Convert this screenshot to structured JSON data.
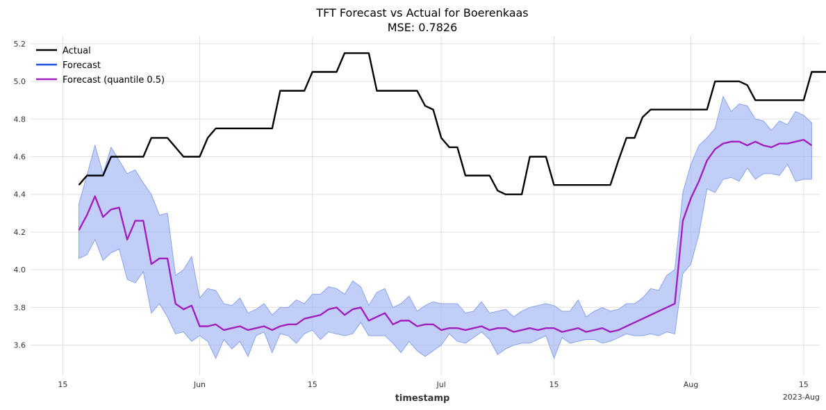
{
  "chart_data": {
    "type": "line",
    "title": "TFT Forecast vs Actual for Boerenkaas",
    "subtitle": "MSE: 0.7826",
    "xlabel": "timestamp",
    "ylabel": "",
    "x_start": "2023-05-17",
    "x_range": [
      "2023-05-11",
      "2023-08-17"
    ],
    "ylim": [
      3.44,
      5.24
    ],
    "y_ticks": [
      3.6,
      3.8,
      4.0,
      4.2,
      4.4,
      4.6,
      4.8,
      5.0,
      5.2
    ],
    "y_tick_labels": [
      "3.6",
      "3.8",
      "4.0",
      "4.2",
      "4.4",
      "4.6",
      "4.8",
      "5.0",
      "5.2"
    ],
    "x_ticks": [
      {
        "date": "2023-05-15",
        "label": "15"
      },
      {
        "date": "2023-06-01",
        "label": "Jun"
      },
      {
        "date": "2023-06-15",
        "label": "15"
      },
      {
        "date": "2023-07-01",
        "label": "Jul"
      },
      {
        "date": "2023-07-15",
        "label": "15"
      },
      {
        "date": "2023-08-01",
        "label": "Aug"
      },
      {
        "date": "2023-08-15",
        "label": "15"
      }
    ],
    "x_corner_label": "2023-Aug",
    "grid": true,
    "legend_position": "top-left",
    "series": [
      {
        "name": "Actual",
        "color": "#000000",
        "values": [
          4.45,
          4.5,
          4.5,
          4.5,
          4.6,
          4.6,
          4.6,
          4.6,
          4.6,
          4.7,
          4.7,
          4.7,
          4.65,
          4.6,
          4.6,
          4.6,
          4.7,
          4.75,
          4.75,
          4.75,
          4.75,
          4.75,
          4.75,
          4.75,
          4.75,
          4.95,
          4.95,
          4.95,
          4.95,
          5.05,
          5.05,
          5.05,
          5.05,
          5.15,
          5.15,
          5.15,
          5.15,
          4.95,
          4.95,
          4.95,
          4.95,
          4.95,
          4.95,
          4.87,
          4.85,
          4.7,
          4.65,
          4.65,
          4.5,
          4.5,
          4.5,
          4.5,
          4.42,
          4.4,
          4.4,
          4.4,
          4.6,
          4.6,
          4.6,
          4.45,
          4.45,
          4.45,
          4.45,
          4.45,
          4.45,
          4.45,
          4.45,
          4.58,
          4.7,
          4.7,
          4.81,
          4.85,
          4.85,
          4.85,
          4.85,
          4.85,
          4.85,
          4.85,
          4.85,
          5.0,
          5.0,
          5.0,
          5.0,
          4.98,
          4.9,
          4.9,
          4.9,
          4.9,
          4.9,
          4.9,
          4.9,
          5.05,
          5.05,
          5.05,
          5.05
        ]
      },
      {
        "name": "Forecast",
        "color": "#1f4fdf",
        "values": []
      },
      {
        "name": "Forecast (quantile 0.5)",
        "color": "#a21fbf",
        "values": [
          4.21,
          4.29,
          4.39,
          4.28,
          4.32,
          4.33,
          4.16,
          4.26,
          4.26,
          4.03,
          4.06,
          4.06,
          3.82,
          3.79,
          3.81,
          3.7,
          3.7,
          3.71,
          3.68,
          3.69,
          3.7,
          3.68,
          3.69,
          3.7,
          3.68,
          3.7,
          3.71,
          3.71,
          3.74,
          3.75,
          3.76,
          3.79,
          3.8,
          3.76,
          3.79,
          3.8,
          3.73,
          3.75,
          3.77,
          3.71,
          3.73,
          3.73,
          3.7,
          3.71,
          3.71,
          3.68,
          3.69,
          3.69,
          3.68,
          3.69,
          3.7,
          3.68,
          3.69,
          3.69,
          3.67,
          3.68,
          3.69,
          3.68,
          3.69,
          3.69,
          3.67,
          3.68,
          3.69,
          3.67,
          3.68,
          3.69,
          3.67,
          3.68,
          3.7,
          3.72,
          3.74,
          3.76,
          3.78,
          3.8,
          3.82,
          4.26,
          4.38,
          4.47,
          4.58,
          4.64,
          4.67,
          4.68,
          4.68,
          4.66,
          4.68,
          4.66,
          4.65,
          4.67,
          4.67,
          4.68,
          4.69,
          4.66
        ]
      }
    ],
    "band": {
      "color": "#a0b4f5",
      "edge_color": "#8aa2ee",
      "upper": [
        4.35,
        4.5,
        4.66,
        4.51,
        4.65,
        4.58,
        4.51,
        4.53,
        4.46,
        4.4,
        4.29,
        4.3,
        3.97,
        4.0,
        4.07,
        3.85,
        3.9,
        3.89,
        3.82,
        3.81,
        3.85,
        3.77,
        3.79,
        3.82,
        3.76,
        3.8,
        3.8,
        3.84,
        3.82,
        3.87,
        3.87,
        3.91,
        3.9,
        3.87,
        3.94,
        3.91,
        3.81,
        3.88,
        3.9,
        3.8,
        3.82,
        3.86,
        3.78,
        3.81,
        3.83,
        3.82,
        3.82,
        3.82,
        3.77,
        3.78,
        3.83,
        3.77,
        3.78,
        3.79,
        3.75,
        3.78,
        3.8,
        3.81,
        3.82,
        3.81,
        3.78,
        3.78,
        3.84,
        3.75,
        3.78,
        3.8,
        3.78,
        3.79,
        3.82,
        3.82,
        3.85,
        3.9,
        3.89,
        3.97,
        4.0,
        4.41,
        4.56,
        4.66,
        4.7,
        4.75,
        4.92,
        4.84,
        4.88,
        4.87,
        4.8,
        4.79,
        4.74,
        4.79,
        4.77,
        4.84,
        4.82,
        4.78
      ],
      "lower": [
        4.06,
        4.08,
        4.16,
        4.05,
        4.09,
        4.11,
        3.95,
        3.93,
        3.99,
        3.77,
        3.82,
        3.75,
        3.66,
        3.67,
        3.62,
        3.65,
        3.62,
        3.53,
        3.63,
        3.58,
        3.62,
        3.54,
        3.65,
        3.67,
        3.56,
        3.66,
        3.65,
        3.61,
        3.66,
        3.68,
        3.63,
        3.67,
        3.66,
        3.65,
        3.66,
        3.72,
        3.65,
        3.65,
        3.65,
        3.61,
        3.56,
        3.62,
        3.57,
        3.54,
        3.57,
        3.6,
        3.66,
        3.62,
        3.61,
        3.64,
        3.67,
        3.63,
        3.55,
        3.58,
        3.6,
        3.61,
        3.61,
        3.63,
        3.65,
        3.53,
        3.64,
        3.61,
        3.62,
        3.63,
        3.63,
        3.61,
        3.62,
        3.64,
        3.66,
        3.65,
        3.65,
        3.66,
        3.65,
        3.67,
        3.66,
        3.98,
        4.03,
        4.19,
        4.43,
        4.41,
        4.48,
        4.49,
        4.47,
        4.54,
        4.48,
        4.51,
        4.51,
        4.5,
        4.56,
        4.47,
        4.48,
        4.48
      ]
    }
  }
}
